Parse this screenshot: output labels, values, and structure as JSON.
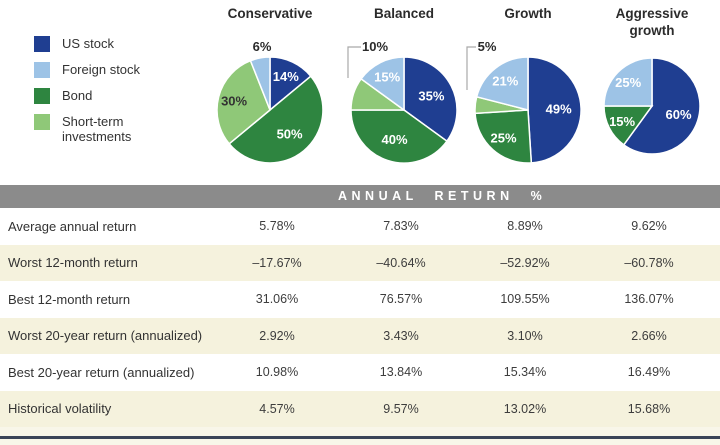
{
  "colors": {
    "us_stock": "#1f3e91",
    "foreign_stock": "#9dc3e6",
    "bond": "#2e8540",
    "short_term": "#8fc878",
    "header_bar": "#8b8b8b",
    "stripe": "#f5f2dd",
    "bottom_rule": "#3a4458"
  },
  "legend": {
    "items": [
      {
        "label": "US stock",
        "color_key": "us_stock"
      },
      {
        "label": "Foreign stock",
        "color_key": "foreign_stock"
      },
      {
        "label": "Bond",
        "color_key": "bond"
      },
      {
        "label": "Short-term investments",
        "color_key": "short_term"
      }
    ]
  },
  "chart_data": [
    {
      "type": "pie",
      "title": "Conservative",
      "slices": [
        {
          "label": "US stock",
          "color_key": "us_stock",
          "value": 14,
          "display": "14%",
          "placement": "inside"
        },
        {
          "label": "Bond",
          "color_key": "bond",
          "value": 50,
          "display": "50%",
          "placement": "inside"
        },
        {
          "label": "Short-term investments",
          "color_key": "short_term",
          "value": 30,
          "display": "30%",
          "placement": "inside"
        },
        {
          "label": "Foreign stock",
          "color_key": "foreign_stock",
          "value": 6,
          "display": "6%",
          "placement": "outside",
          "callout": false
        }
      ]
    },
    {
      "type": "pie",
      "title": "Balanced",
      "slices": [
        {
          "label": "US stock",
          "color_key": "us_stock",
          "value": 35,
          "display": "35%",
          "placement": "inside"
        },
        {
          "label": "Bond",
          "color_key": "bond",
          "value": 40,
          "display": "40%",
          "placement": "inside"
        },
        {
          "label": "Short-term investments",
          "color_key": "short_term",
          "value": 10,
          "display": "10%",
          "placement": "outside",
          "callout": true
        },
        {
          "label": "Foreign stock",
          "color_key": "foreign_stock",
          "value": 15,
          "display": "15%",
          "placement": "inside"
        }
      ]
    },
    {
      "type": "pie",
      "title": "Growth",
      "slices": [
        {
          "label": "US stock",
          "color_key": "us_stock",
          "value": 49,
          "display": "49%",
          "placement": "inside"
        },
        {
          "label": "Bond",
          "color_key": "bond",
          "value": 25,
          "display": "25%",
          "placement": "inside"
        },
        {
          "label": "Short-term investments",
          "color_key": "short_term",
          "value": 5,
          "display": "5%",
          "placement": "outside",
          "callout": true
        },
        {
          "label": "Foreign stock",
          "color_key": "foreign_stock",
          "value": 21,
          "display": "21%",
          "placement": "inside"
        }
      ]
    },
    {
      "type": "pie",
      "title": "Aggressive growth",
      "slices": [
        {
          "label": "US stock",
          "color_key": "us_stock",
          "value": 60,
          "display": "60%",
          "placement": "inside"
        },
        {
          "label": "Bond",
          "color_key": "bond",
          "value": 15,
          "display": "15%",
          "placement": "inside"
        },
        {
          "label": "Foreign stock",
          "color_key": "foreign_stock",
          "value": 25,
          "display": "25%",
          "placement": "inside"
        }
      ]
    }
  ],
  "table": {
    "header_label": "ANNUAL RETURN %",
    "columns": [
      "Conservative",
      "Balanced",
      "Growth",
      "Aggressive growth"
    ],
    "rows": [
      {
        "label": "Average annual return",
        "values": [
          "5.78%",
          "7.83%",
          "8.89%",
          "9.62%"
        ]
      },
      {
        "label": "Worst 12-month return",
        "values": [
          "–17.67%",
          "–40.64%",
          "–52.92%",
          "–60.78%"
        ]
      },
      {
        "label": "Best 12-month return",
        "values": [
          "31.06%",
          "76.57%",
          "109.55%",
          "136.07%"
        ]
      },
      {
        "label": "Worst 20-year return (annualized)",
        "values": [
          "2.92%",
          "3.43%",
          "3.10%",
          "2.66%"
        ]
      },
      {
        "label": "Best 20-year return (annualized)",
        "values": [
          "10.98%",
          "13.84%",
          "15.34%",
          "16.49%"
        ]
      },
      {
        "label": "Historical volatility",
        "values": [
          "4.57%",
          "9.57%",
          "13.02%",
          "15.68%"
        ]
      }
    ]
  }
}
